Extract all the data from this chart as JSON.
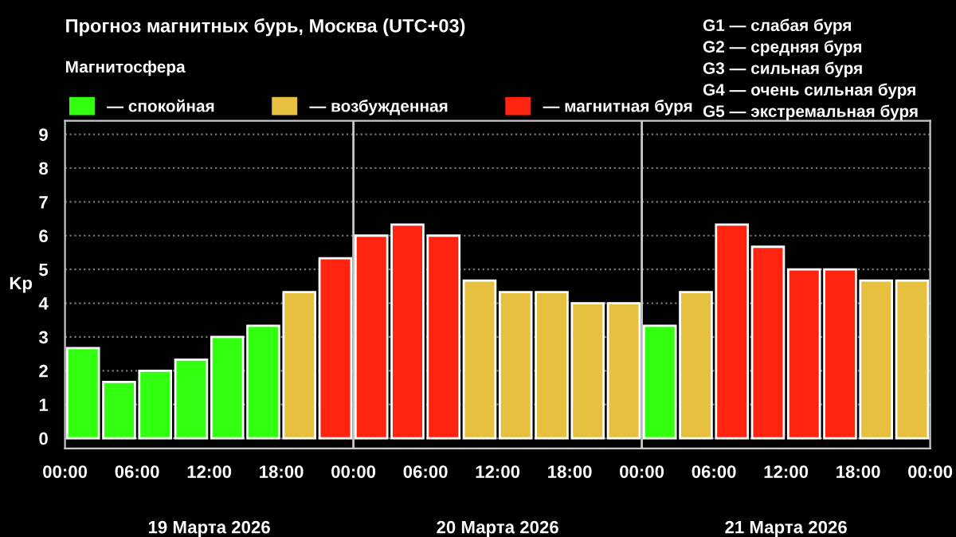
{
  "chart_data": {
    "type": "bar",
    "title": "Прогноз магнитных бурь, Москва (UTC+03)",
    "ylabel": "Kp",
    "legend_title": "Магнитосфера",
    "legend": "top left",
    "x": [
      "2026-03-19T01:30",
      "2026-03-19T04:30",
      "2026-03-19T07:30",
      "2026-03-19T10:30",
      "2026-03-19T13:30",
      "2026-03-19T16:30",
      "2026-03-19T19:30",
      "2026-03-19T22:30",
      "2026-03-20T01:30",
      "2026-03-20T04:30",
      "2026-03-20T07:30",
      "2026-03-20T10:30",
      "2026-03-20T13:30",
      "2026-03-20T16:30",
      "2026-03-20T19:30",
      "2026-03-20T22:30",
      "2026-03-21T01:30",
      "2026-03-21T04:30",
      "2026-03-21T07:30",
      "2026-03-21T10:30",
      "2026-03-21T13:30",
      "2026-03-21T16:30",
      "2026-03-21T19:30",
      "2026-03-21T22:30"
    ],
    "series": [
      {
        "name": "— спокойная",
        "color": "#33ff10",
        "values": [
          2.67,
          1.67,
          2.0,
          2.33,
          3.0,
          3.33,
          null,
          null,
          null,
          null,
          null,
          null,
          null,
          null,
          null,
          null,
          3.33,
          null,
          null,
          null,
          null,
          null,
          null,
          null
        ]
      },
      {
        "name": "— возбужденная",
        "color": "#e8c040",
        "values": [
          null,
          null,
          null,
          null,
          null,
          null,
          4.33,
          null,
          null,
          null,
          null,
          4.67,
          4.33,
          4.33,
          4.0,
          4.0,
          null,
          4.33,
          null,
          null,
          null,
          null,
          4.67,
          4.67
        ]
      },
      {
        "name": "— магнитная буря",
        "color": "#ff2410",
        "values": [
          null,
          null,
          null,
          null,
          null,
          null,
          null,
          5.33,
          6.0,
          6.33,
          6.0,
          null,
          null,
          null,
          null,
          null,
          null,
          null,
          6.33,
          5.67,
          5.0,
          5.0,
          null,
          null
        ]
      }
    ],
    "xlim": [
      "2026-03-19T00:00",
      "2026-03-22T00:00"
    ],
    "xticks": [
      {
        "value": "2026-03-19T00:00",
        "label": "00:00"
      },
      {
        "value": "2026-03-19T06:00",
        "label": "06:00"
      },
      {
        "value": "2026-03-19T12:00",
        "label": "12:00"
      },
      {
        "value": "2026-03-19T18:00",
        "label": "18:00"
      },
      {
        "value": "2026-03-20T00:00",
        "label": "00:00"
      },
      {
        "value": "2026-03-20T06:00",
        "label": "06:00"
      },
      {
        "value": "2026-03-20T12:00",
        "label": "12:00"
      },
      {
        "value": "2026-03-20T18:00",
        "label": "18:00"
      },
      {
        "value": "2026-03-21T00:00",
        "label": "00:00"
      },
      {
        "value": "2026-03-21T06:00",
        "label": "06:00"
      },
      {
        "value": "2026-03-21T12:00",
        "label": "12:00"
      },
      {
        "value": "2026-03-21T18:00",
        "label": "18:00"
      },
      {
        "value": "2026-03-22T00:00",
        "label": "00:00"
      }
    ],
    "ylim": [
      -0.3,
      9.4
    ],
    "yticks": [
      0,
      1,
      2,
      3,
      4,
      5,
      6,
      7,
      8,
      9
    ],
    "grid": "y",
    "ref_lines": [
      {
        "axis": "x",
        "value": "2026-03-20T00:00",
        "color": "#c8c8c8"
      },
      {
        "axis": "x",
        "value": "2026-03-21T00:00",
        "color": "#c8c8c8"
      }
    ],
    "annotations": [
      "19 Марта 2026",
      "20 Марта 2026",
      "21 Марта 2026",
      "G1 — слабая буря",
      "G2 — средняя буря",
      "G3 — сильная буря",
      "G4 — очень сильная буря",
      "G5 — экстремальная буря"
    ]
  }
}
